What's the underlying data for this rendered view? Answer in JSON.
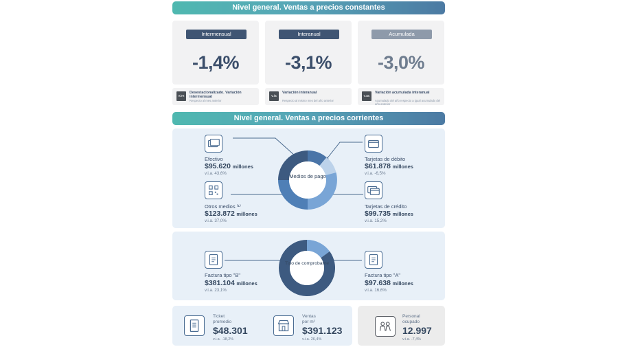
{
  "constant_section": {
    "title": "Nivel general. Ventas a precios constantes",
    "cards": [
      {
        "tag": "Intermensual",
        "value": "-1,4%",
        "badge": "v.im",
        "foot_title": "Desestacionalizado. Variación intermensual",
        "foot_sub": "Respecto al mes anterior"
      },
      {
        "tag": "Interanual",
        "value": "-3,1%",
        "badge": "v.ia",
        "foot_title": "Variación interanual",
        "foot_sub": "Respecto al mismo mes del año anterior"
      },
      {
        "tag": "Acumulada",
        "value": "-3,0%",
        "badge": "v.ac",
        "foot_title": "Variación acumulada interanual",
        "foot_sub": "Acumulado del año respecto a igual acumulado del año anterior"
      }
    ]
  },
  "current_section": {
    "title": "Nivel general. Ventas a precios corrientes",
    "payment": {
      "center": "Medios de pago",
      "items": {
        "efectivo": {
          "label": "Efectivo",
          "amount": "$95.620",
          "unit": "millones",
          "via": "v.i.a. 43,6%"
        },
        "debito": {
          "label": "Tarjetas de débito",
          "amount": "$61.878",
          "unit": "millones",
          "via": "v.i.a. -6,5%"
        },
        "otros": {
          "label": "Otros medios ⁽¹⁾",
          "amount": "$123.872",
          "unit": "millones",
          "via": "v.i.a. 37,0%"
        },
        "credito": {
          "label": "Tarjetas de crédito",
          "amount": "$99.735",
          "unit": "millones",
          "via": "v.i.a. 15,2%"
        }
      }
    },
    "voucher": {
      "center": "Tipo de comprobante",
      "items": {
        "b": {
          "label": "Factura tipo \"B\"",
          "amount": "$381.104",
          "unit": "millones",
          "via": "v.i.a. 23,1%"
        },
        "a": {
          "label": "Factura tipo \"A\"",
          "amount": "$97.638",
          "unit": "millones",
          "via": "v.i.a. 16,6%"
        }
      }
    }
  },
  "bottom": {
    "ticket": {
      "label1": "Ticket",
      "label2": "promedio",
      "value": "$48.301",
      "via": "v.i.a. -18,2%"
    },
    "ventas_m2": {
      "label1": "Ventas",
      "label2": "por m²",
      "value": "$391.123",
      "via": "v.i.a. 26,4%"
    },
    "personal": {
      "label1": "Personal",
      "label2": "ocupado",
      "value": "12.997",
      "via": "v.i.a. -7,4%"
    }
  },
  "colors": {
    "teal": "#4fb8b0",
    "navy": "#3f5573",
    "panel": "#e8f0f8",
    "muted_tag": "#8e9aaa"
  }
}
